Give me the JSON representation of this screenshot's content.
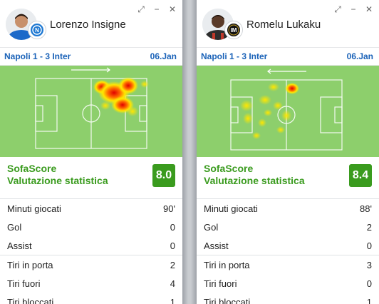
{
  "cards": [
    {
      "player": "Lorenzo Insigne",
      "club_badge": "napoli-badge",
      "match": "Napoli 1 - 3 Inter",
      "date": "06.Jan",
      "attack_direction": "right",
      "rating_label_1": "SofaScore",
      "rating_label_2": "Valutazione statistica",
      "rating": "8.0",
      "rating_color": "#3a9b1e",
      "stats": [
        {
          "label": "Minuti giocati",
          "value": "90'"
        },
        {
          "label": "Gol",
          "value": "0"
        },
        {
          "label": "Assist",
          "value": "0"
        },
        {
          "label": "Tiri in porta",
          "value": "2"
        },
        {
          "label": "Tiri fuori",
          "value": "4"
        },
        {
          "label": "Tiri bloccati",
          "value": "1"
        }
      ]
    },
    {
      "player": "Romelu Lukaku",
      "club_badge": "inter-badge",
      "match": "Napoli 1 - 3 Inter",
      "date": "06.Jan",
      "attack_direction": "left",
      "rating_label_1": "SofaScore",
      "rating_label_2": "Valutazione statistica",
      "rating": "8.4",
      "rating_color": "#3a9b1e",
      "stats": [
        {
          "label": "Minuti giocati",
          "value": "88'"
        },
        {
          "label": "Gol",
          "value": "2"
        },
        {
          "label": "Assist",
          "value": "0"
        },
        {
          "label": "Tiri in porta",
          "value": "3"
        },
        {
          "label": "Tiri fuori",
          "value": "0"
        },
        {
          "label": "Tiri bloccati",
          "value": "1"
        }
      ]
    }
  ],
  "window_controls": {
    "expand": "⤢",
    "minimize": "−",
    "close": "✕"
  },
  "colors": {
    "link": "#1a62b8",
    "pitch": "#8dcf6c"
  }
}
